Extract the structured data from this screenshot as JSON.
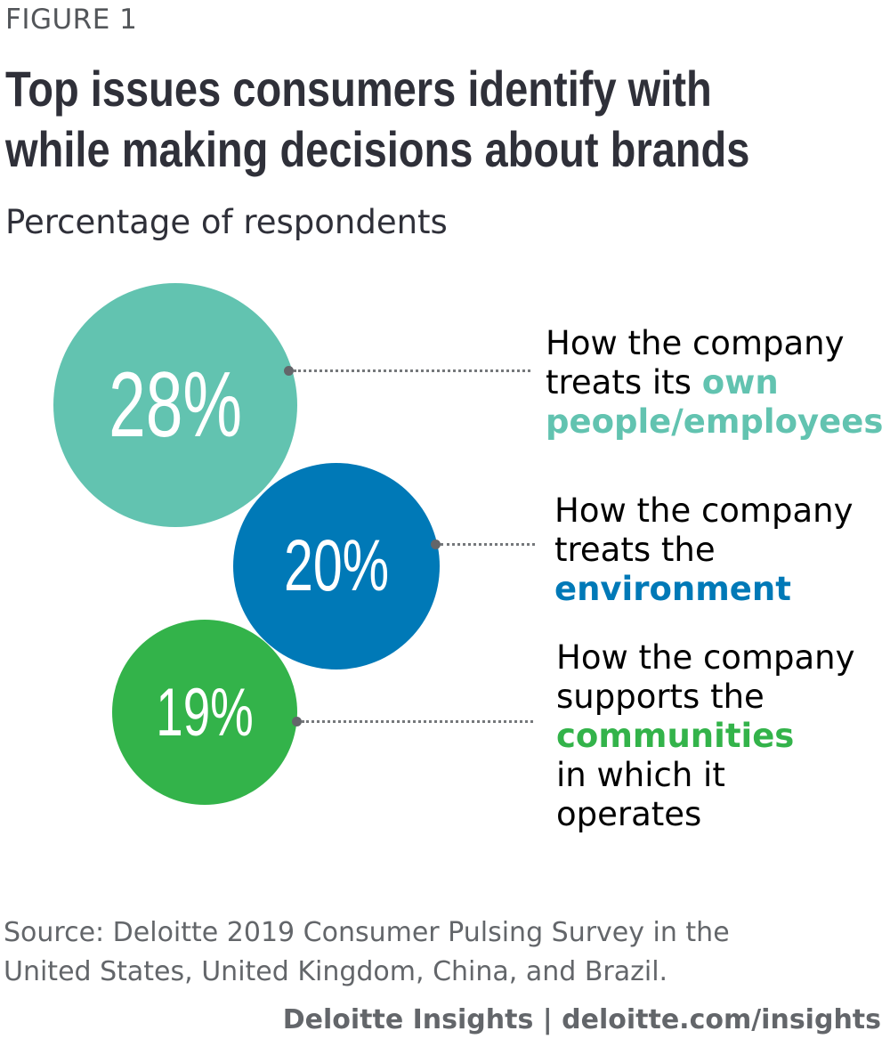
{
  "figure_label": "FIGURE 1",
  "chart_data": {
    "type": "bubble",
    "title": "Top issues consumers identify with while making decisions about brands",
    "title_lines": [
      "Top issues consumers identify with",
      "while making decisions about brands"
    ],
    "subtitle": "Percentage of respondents",
    "unit": "%",
    "series": [
      {
        "value": 28,
        "label_text": "28%",
        "label_plain": "How the company\ntreats its ",
        "label_highlight": "own people/employees",
        "label_lines": [
          "How the company",
          "treats its ",
          "own",
          "people/employees"
        ],
        "color": "#62c3b0"
      },
      {
        "value": 20,
        "label_text": "20%",
        "label_lines": [
          "How the company",
          "treats the",
          "environment"
        ],
        "color": "#0079b7"
      },
      {
        "value": 19,
        "label_text": "19%",
        "label_lines": [
          "How the company",
          "supports the",
          "communities",
          "in which it",
          "operates"
        ],
        "color": "#33b34a"
      }
    ]
  },
  "source_lines": [
    "Source: Deloitte 2019 Consumer Pulsing Survey in the",
    "United States, United Kingdom, China, and Brazil."
  ],
  "footer": "Deloitte Insights | deloitte.com/insights"
}
